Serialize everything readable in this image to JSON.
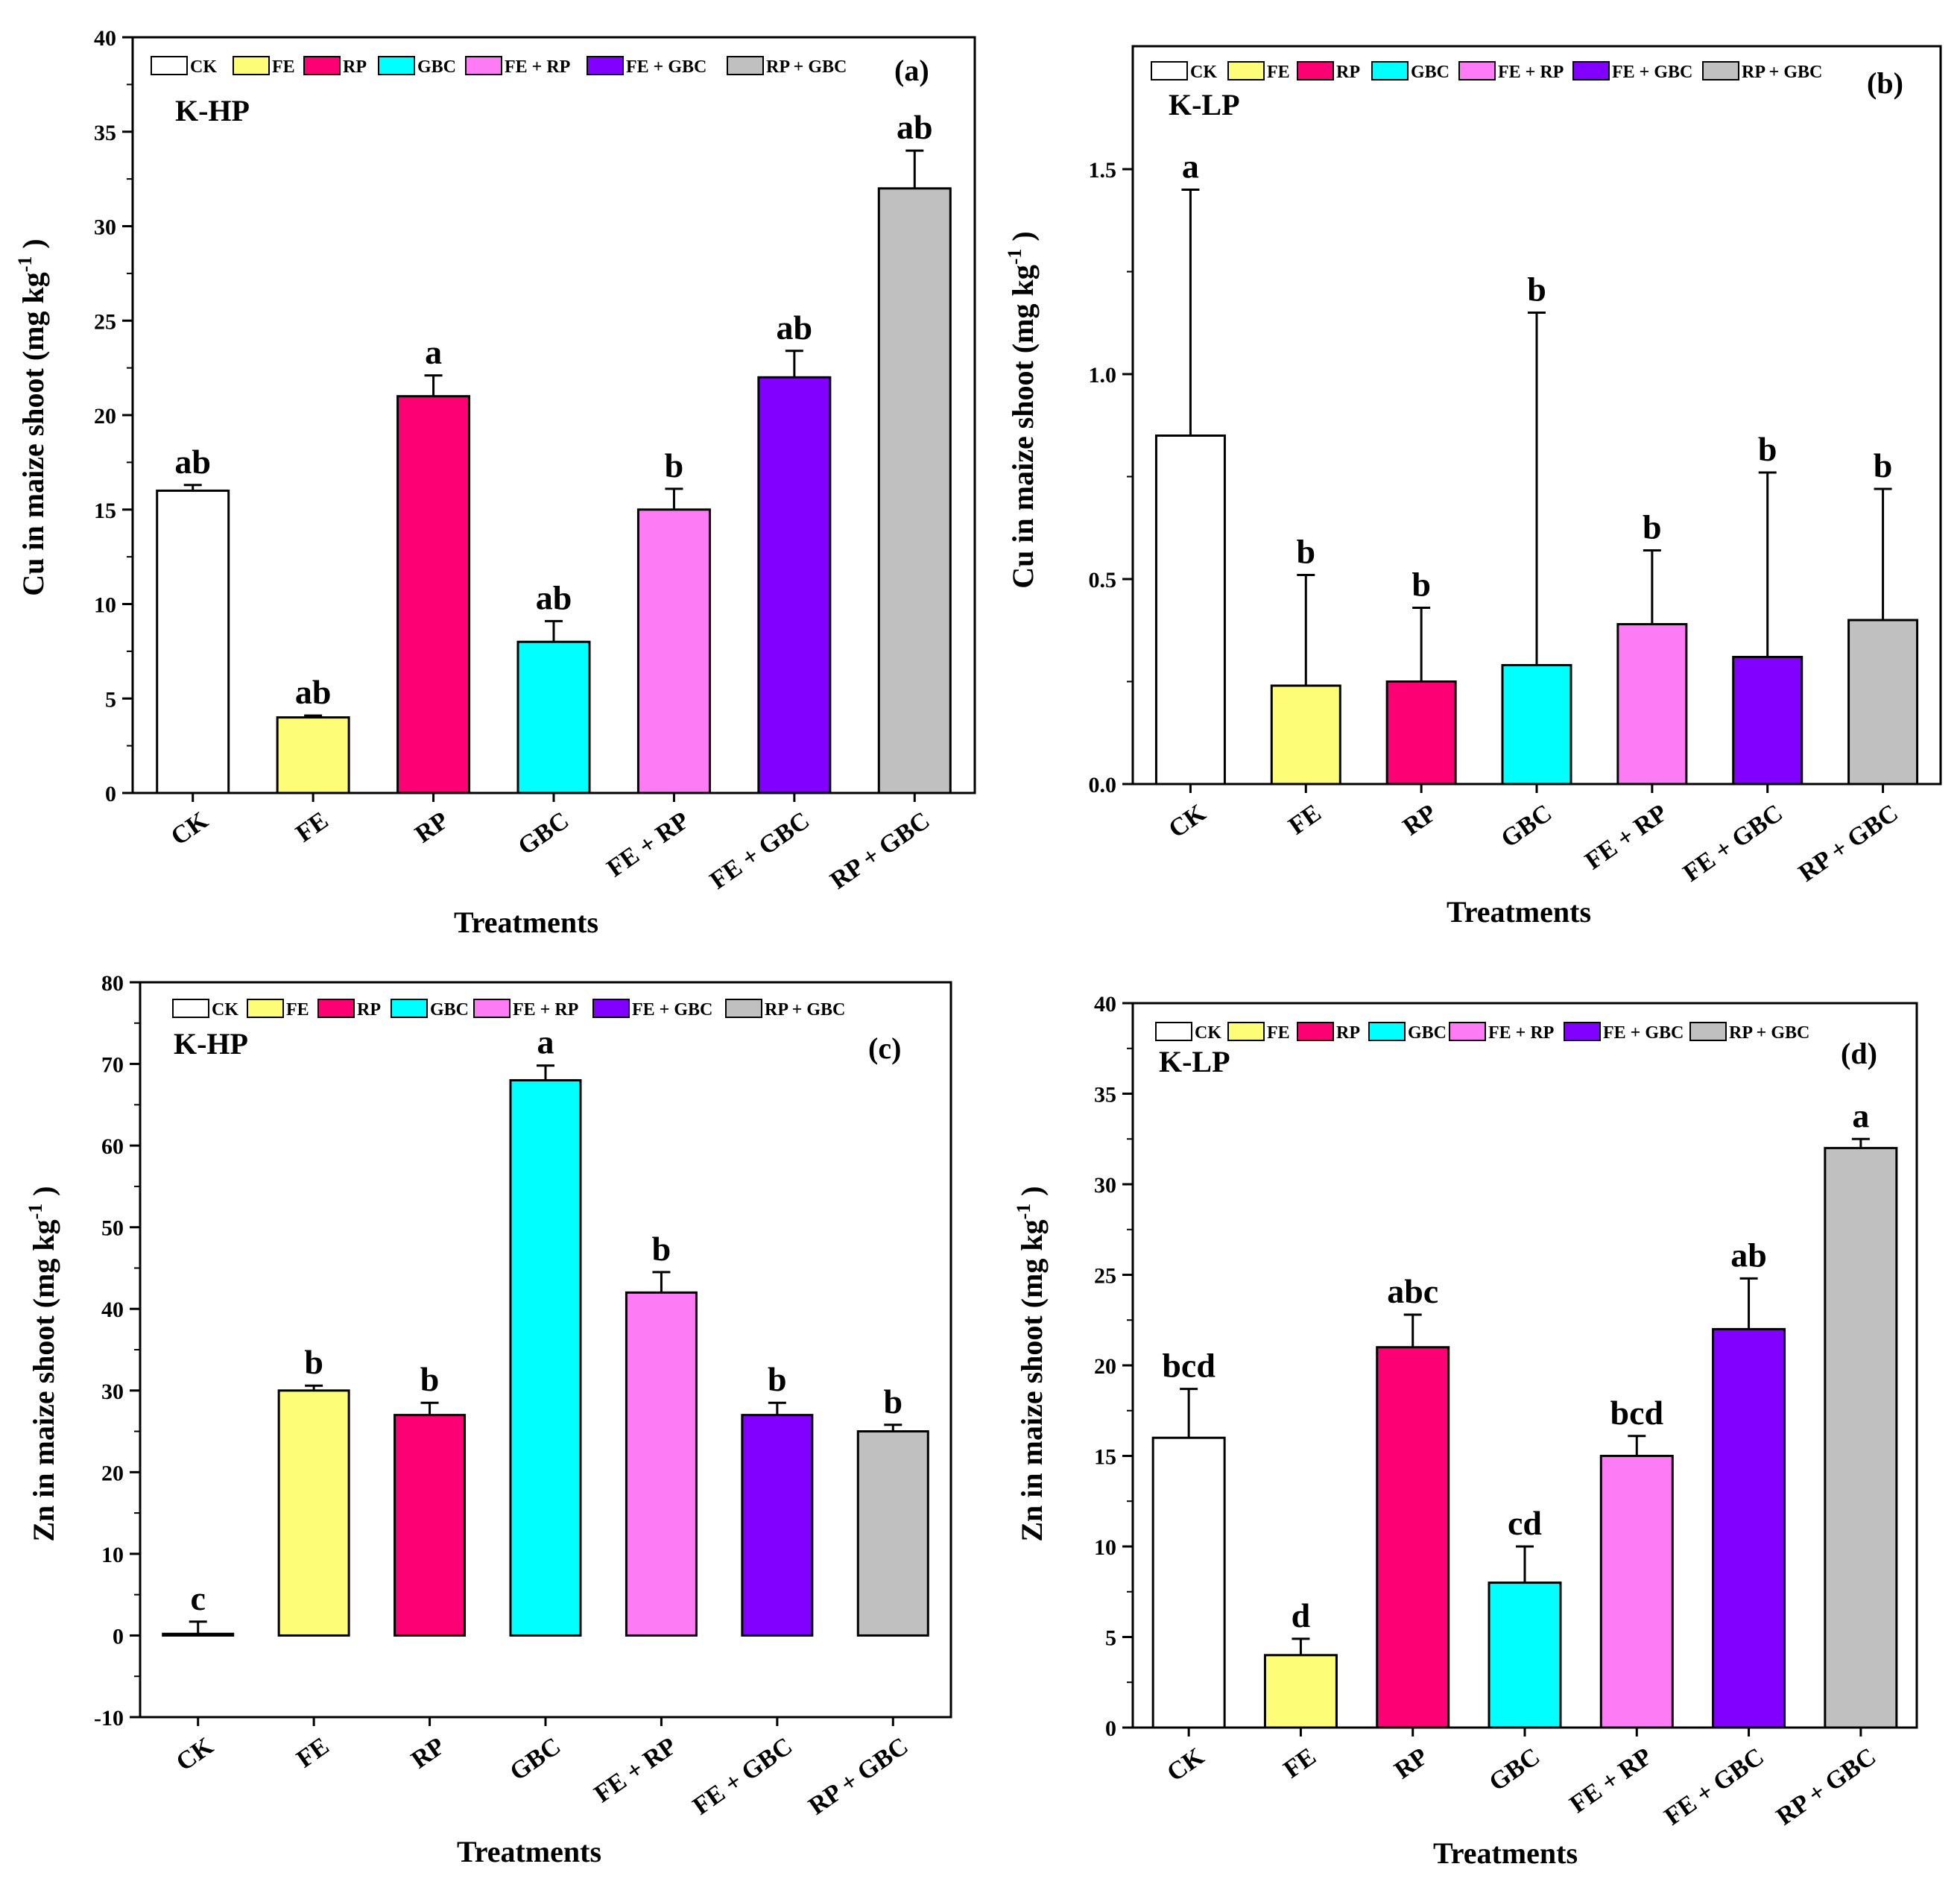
{
  "chart_data": [
    {
      "id": "a",
      "type": "bar",
      "panel_label": "(a)",
      "site_label": "K-HP",
      "ylabel": "Cu in maize shoot (mg kg",
      "ylabel_sup": "-1",
      "ylabel_close": ")",
      "xlabel": "Treatments",
      "categories": [
        "CK",
        "FE",
        "RP",
        "GBC",
        "FE + RP",
        "FE + GBC",
        "RP + GBC"
      ],
      "values": [
        16,
        4,
        21,
        8,
        15,
        22,
        32
      ],
      "errors": [
        0.3,
        0.1,
        1.1,
        1.1,
        1.1,
        1.4,
        2.0
      ],
      "letters": [
        "ab",
        "ab",
        "a",
        "ab",
        "b",
        "ab",
        "ab"
      ],
      "ylim": [
        0,
        40
      ],
      "yticks": [
        0,
        5,
        10,
        15,
        20,
        25,
        30,
        35,
        40
      ],
      "ytick_labels": [
        "0",
        "5",
        "10",
        "15",
        "20",
        "25",
        "30",
        "35",
        "40"
      ]
    },
    {
      "id": "b",
      "type": "bar",
      "panel_label": "(b)",
      "site_label": "K-LP",
      "ylabel": "Cu in maize shoot (mg kg",
      "ylabel_sup": "-1",
      "ylabel_close": ")",
      "xlabel": "Treatments",
      "categories": [
        "CK",
        "FE",
        "RP",
        "GBC",
        "FE + RP",
        "FE + GBC",
        "RP + GBC"
      ],
      "values": [
        0.85,
        0.24,
        0.25,
        0.29,
        0.39,
        0.31,
        0.4
      ],
      "errors": [
        0.6,
        0.27,
        0.18,
        0.86,
        0.18,
        0.45,
        0.32
      ],
      "letters": [
        "a",
        "b",
        "b",
        "b",
        "b",
        "b",
        "b"
      ],
      "ylim": [
        0,
        1.8
      ],
      "yticks": [
        0,
        0.5,
        1.0,
        1.5
      ],
      "ytick_labels": [
        "0.0",
        "0.5",
        "1.0",
        "1.5"
      ]
    },
    {
      "id": "c",
      "type": "bar",
      "panel_label": "(c)",
      "site_label": "K-HP",
      "ylabel": "Zn in maize shoot (mg kg",
      "ylabel_sup": "-1",
      "ylabel_close": ")",
      "xlabel": "Treatments",
      "categories": [
        "CK",
        "FE",
        "RP",
        "GBC",
        "FE + RP",
        "FE + GBC",
        "RP + GBC"
      ],
      "values": [
        0.2,
        30,
        27,
        68,
        42,
        27,
        25
      ],
      "errors": [
        1.5,
        0.6,
        1.5,
        1.8,
        2.5,
        1.5,
        0.8
      ],
      "letters": [
        "c",
        "b",
        "b",
        "a",
        "b",
        "b",
        "b"
      ],
      "ylim": [
        -10,
        80
      ],
      "yticks": [
        -10,
        0,
        10,
        20,
        30,
        40,
        50,
        60,
        70,
        80
      ],
      "ytick_labels": [
        "-10",
        "0",
        "10",
        "20",
        "30",
        "40",
        "50",
        "60",
        "70",
        "80"
      ]
    },
    {
      "id": "d",
      "type": "bar",
      "panel_label": "(d)",
      "site_label": "K-LP",
      "ylabel": "Zn in maize shoot (mg kg",
      "ylabel_sup": "-1",
      "ylabel_close": ")",
      "xlabel": "Treatments",
      "categories": [
        "CK",
        "FE",
        "RP",
        "GBC",
        "FE + RP",
        "FE + GBC",
        "RP + GBC"
      ],
      "values": [
        16,
        4,
        21,
        8,
        15,
        22,
        32
      ],
      "errors": [
        2.7,
        0.9,
        1.8,
        2.0,
        1.1,
        2.8,
        0.5
      ],
      "letters": [
        "bcd",
        "d",
        "abc",
        "cd",
        "bcd",
        "ab",
        "a"
      ],
      "ylim": [
        0,
        40
      ],
      "yticks": [
        0,
        5,
        10,
        15,
        20,
        25,
        30,
        35,
        40
      ],
      "ytick_labels": [
        "0",
        "5",
        "10",
        "15",
        "20",
        "25",
        "30",
        "35",
        "40"
      ]
    }
  ],
  "legend": [
    "CK",
    "FE",
    "RP",
    "GBC",
    "FE + RP",
    "FE + GBC",
    "RP + GBC"
  ],
  "colors": [
    "#ffffff",
    "#fdfd77",
    "#fd0073",
    "#00ffff",
    "#fd7cf5",
    "#8200ff",
    "#c0c0c0"
  ]
}
